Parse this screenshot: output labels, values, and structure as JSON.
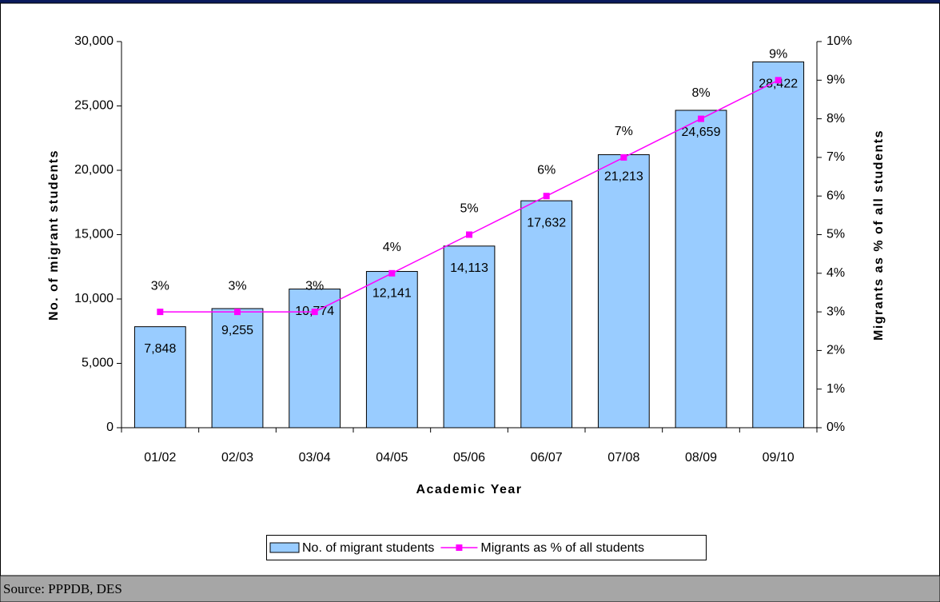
{
  "chart_data": {
    "type": "bar",
    "categories": [
      "01/02",
      "02/03",
      "03/04",
      "04/05",
      "05/06",
      "06/07",
      "07/08",
      "08/09",
      "09/10"
    ],
    "series": [
      {
        "name": "No. of migrant students",
        "color": "#99ccff",
        "type": "bar",
        "values": [
          7848,
          9255,
          10774,
          12141,
          14113,
          17632,
          21213,
          24659,
          28422
        ],
        "value_labels": [
          "7,848",
          "9,255",
          "10,774",
          "12,141",
          "14,113",
          "17,632",
          "21,213",
          "24,659",
          "28,422"
        ]
      },
      {
        "name": "Migrants as % of all students",
        "color": "#ff00ff",
        "type": "line",
        "axis": "y2",
        "values": [
          3,
          3,
          3,
          4,
          5,
          6,
          7,
          8,
          9
        ],
        "value_labels": [
          "3%",
          "3%",
          "3%",
          "4%",
          "5%",
          "6%",
          "7%",
          "8%",
          "9%"
        ]
      }
    ],
    "xlabel": "Academic Year",
    "ylabel": "No. of migrant students",
    "y2label": "Migrants as % of all students",
    "ylim": [
      0,
      30000
    ],
    "yticks": [
      0,
      {
        "value": 5000,
        "label": "5,000"
      },
      {
        "value": 10000,
        "label": "10,000"
      },
      {
        "value": 15000,
        "label": "15,000"
      },
      {
        "value": 20000,
        "label": "20,000"
      },
      {
        "value": 25000,
        "label": "25,000"
      },
      {
        "value": 30000,
        "label": "30,000"
      }
    ],
    "y2lim": [
      0,
      10
    ],
    "y2ticks": [
      {
        "value": 0,
        "label": "0%"
      },
      {
        "value": 1,
        "label": "1%"
      },
      {
        "value": 2,
        "label": "2%"
      },
      {
        "value": 3,
        "label": "3%"
      },
      {
        "value": 4,
        "label": "4%"
      },
      {
        "value": 5,
        "label": "5%"
      },
      {
        "value": 6,
        "label": "6%"
      },
      {
        "value": 7,
        "label": "7%"
      },
      {
        "value": 8,
        "label": "8%"
      },
      {
        "value": 9,
        "label": "9%"
      },
      {
        "value": 10,
        "label": "10%"
      }
    ],
    "legend": "bottom",
    "source": "Source: PPPDB, DES"
  }
}
